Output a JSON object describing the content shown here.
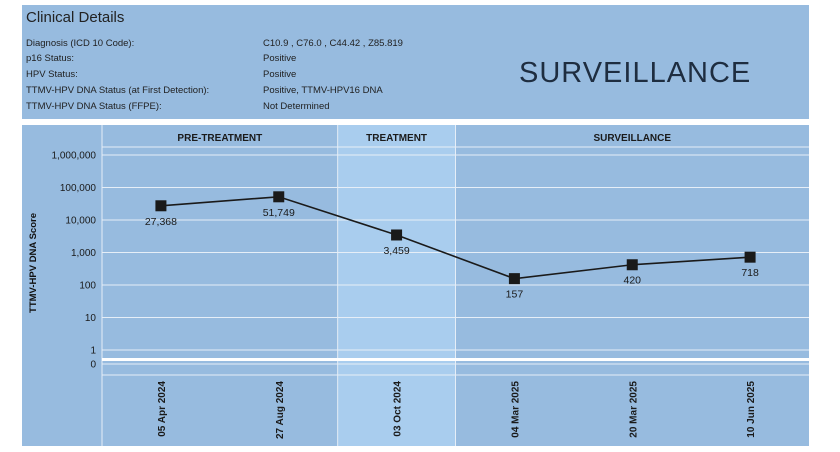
{
  "details": {
    "title": "Clinical Details",
    "rows": [
      {
        "label": "Diagnosis (ICD 10 Code):",
        "value": "C10.9 , C76.0 , C44.42 , Z85.819"
      },
      {
        "label": "p16 Status:",
        "value": "Positive"
      },
      {
        "label": "HPV Status:",
        "value": "Positive"
      },
      {
        "label": "TTMV-HPV DNA Status (at First Detection):",
        "value": "Positive, TTMV-HPV16 DNA"
      },
      {
        "label": "TTMV-HPV DNA Status (FFPE):",
        "value": "Not Determined"
      }
    ],
    "phase_banner": "SURVEILLANCE"
  },
  "chart_data": {
    "type": "line",
    "ylabel": "TTMV-HPV DNA Score",
    "yscale": "log",
    "ylim": [
      0,
      1000000
    ],
    "yticks": [
      {
        "value": 1000000,
        "label": "1,000,000"
      },
      {
        "value": 100000,
        "label": "100,000"
      },
      {
        "value": 10000,
        "label": "10,000"
      },
      {
        "value": 1000,
        "label": "1,000"
      },
      {
        "value": 100,
        "label": "100"
      },
      {
        "value": 10,
        "label": "10"
      },
      {
        "value": 1,
        "label": "1"
      },
      {
        "value": 0,
        "label": "0"
      }
    ],
    "phases": [
      {
        "name": "PRE-TREATMENT",
        "start": 0,
        "end": 2,
        "highlight": false
      },
      {
        "name": "TREATMENT",
        "start": 2,
        "end": 3,
        "highlight": true
      },
      {
        "name": "SURVEILLANCE",
        "start": 3,
        "end": 6,
        "highlight": false
      }
    ],
    "x": [
      "05 Apr 2024",
      "27 Aug 2024",
      "03 Oct 2024",
      "04 Mar 2025",
      "20 Mar 2025",
      "10 Jun 2025"
    ],
    "values": [
      27368,
      51749,
      3459,
      157,
      420,
      718
    ],
    "value_labels": [
      "27,368",
      "51,749",
      "3,459",
      "157",
      "420",
      "718"
    ],
    "grid": true,
    "colors": {
      "panel": "#97bbdf",
      "highlight": "#a9cdee",
      "line": "#1a1a1a",
      "marker": "#1a1a1a",
      "grid": "#e6eef7"
    }
  }
}
